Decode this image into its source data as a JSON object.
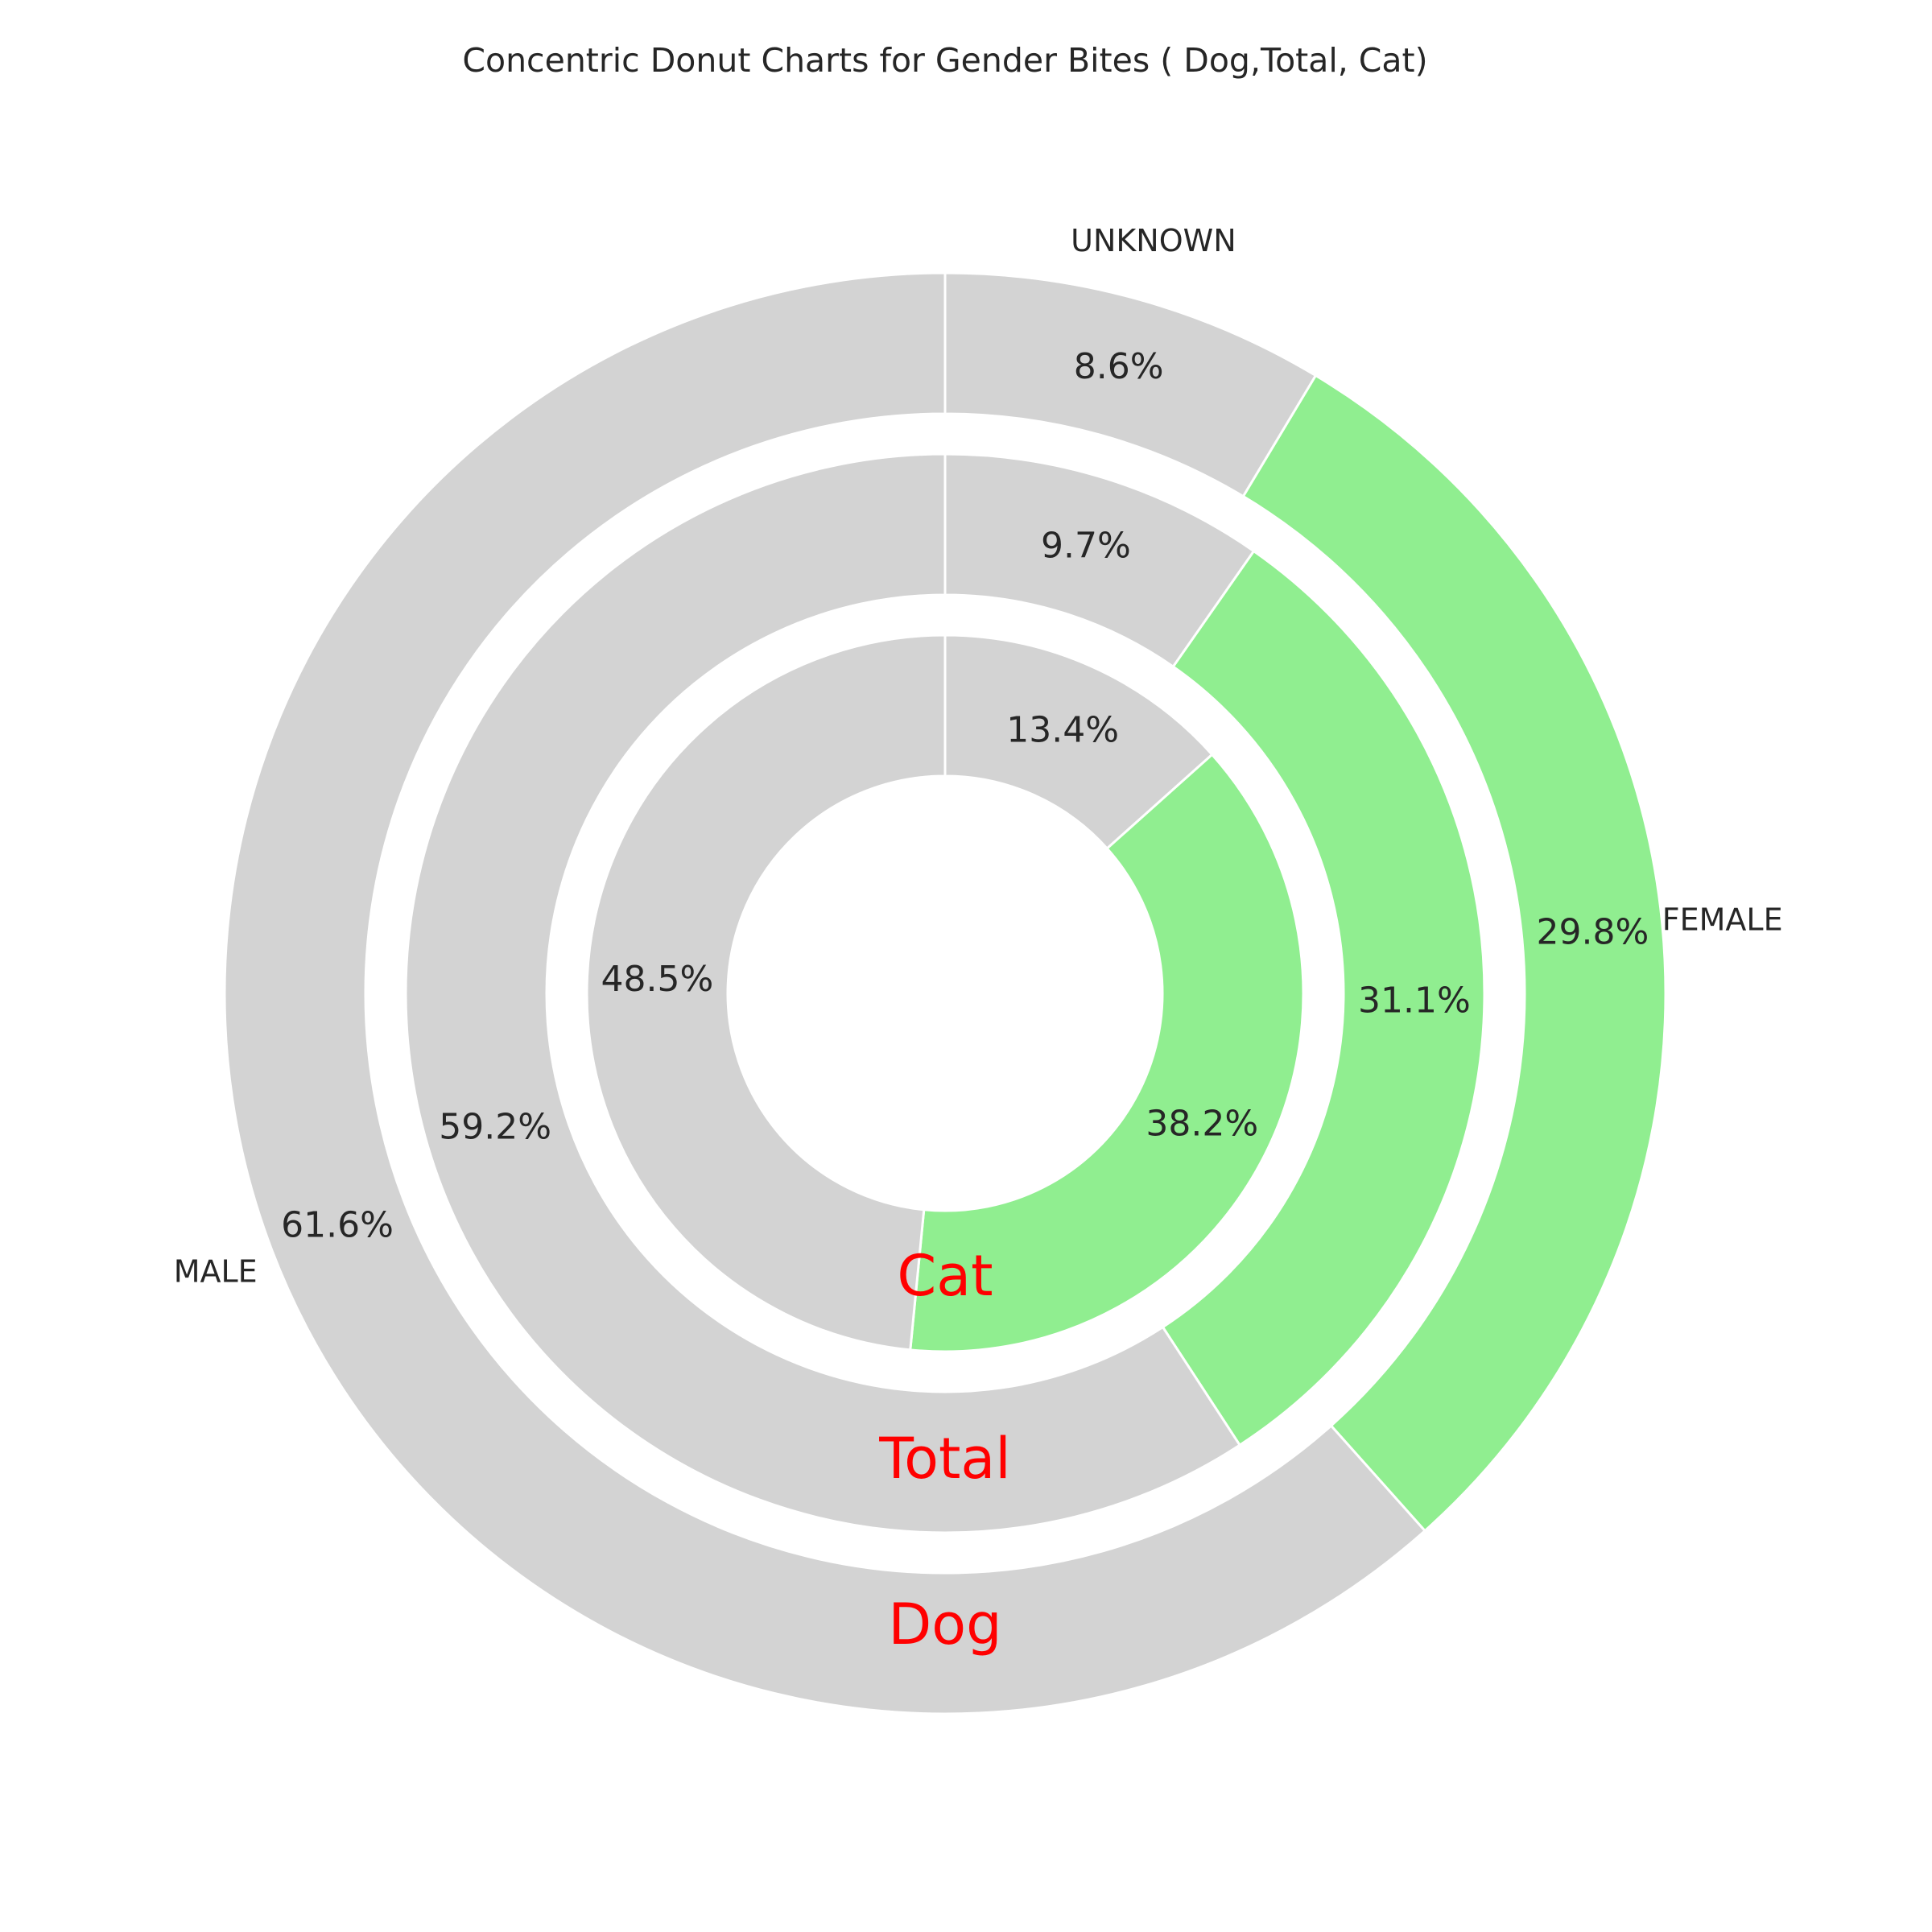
{
  "chart_data": {
    "type": "pie",
    "title": "Concentric Donut Charts for Gender Bites ( Dog,Total, Cat)",
    "categories": [
      "UNKNOWN",
      "FEMALE",
      "MALE"
    ],
    "colors": {
      "UNKNOWN": "#d3d3d3",
      "FEMALE": "#90ee90",
      "MALE": "#d3d3d3",
      "ring_name": "#ff0000"
    },
    "series": [
      {
        "name": "Dog",
        "values": [
          8.6,
          29.8,
          61.6
        ],
        "labels": [
          "8.6%",
          "29.8%",
          "61.6%"
        ]
      },
      {
        "name": "Total",
        "values": [
          9.7,
          31.1,
          59.2
        ],
        "labels": [
          "9.7%",
          "31.1%",
          "59.2%"
        ]
      },
      {
        "name": "Cat",
        "values": [
          13.4,
          38.2,
          48.5
        ],
        "labels": [
          "13.4%",
          "38.2%",
          "48.5%"
        ]
      }
    ],
    "start_angle": "top",
    "direction": "clockwise"
  }
}
